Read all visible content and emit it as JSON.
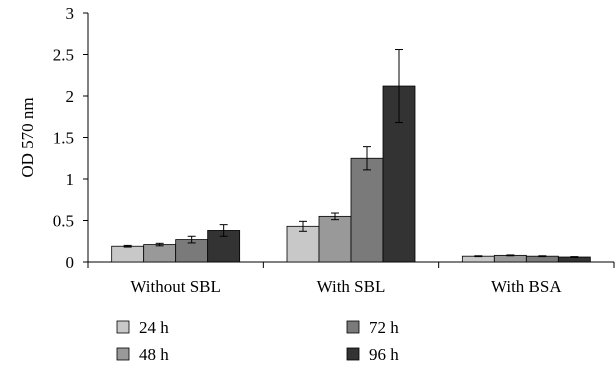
{
  "chart_data": {
    "type": "bar",
    "categories": [
      "Without SBL",
      "With SBL",
      "With BSA"
    ],
    "series": [
      {
        "name": "24 h",
        "color": "#c8c8c8",
        "values": [
          0.19,
          0.43,
          0.07
        ],
        "errors": [
          0.01,
          0.06,
          0.005
        ]
      },
      {
        "name": "48 h",
        "color": "#999999",
        "values": [
          0.21,
          0.55,
          0.08
        ],
        "errors": [
          0.015,
          0.04,
          0.005
        ]
      },
      {
        "name": "72 h",
        "color": "#7a7a7a",
        "values": [
          0.27,
          1.25,
          0.07
        ],
        "errors": [
          0.04,
          0.14,
          0.005
        ]
      },
      {
        "name": "96 h",
        "color": "#333333",
        "values": [
          0.38,
          2.12,
          0.06
        ],
        "errors": [
          0.07,
          0.44,
          0.005
        ]
      }
    ],
    "xlabel": "",
    "ylabel": "OD 570 nm",
    "ylim": [
      0,
      3
    ],
    "yticks": [
      "0",
      "0.5",
      "1",
      "1.5",
      "2",
      "2.5",
      "3"
    ],
    "grid": false,
    "legend_position": "bottom"
  }
}
